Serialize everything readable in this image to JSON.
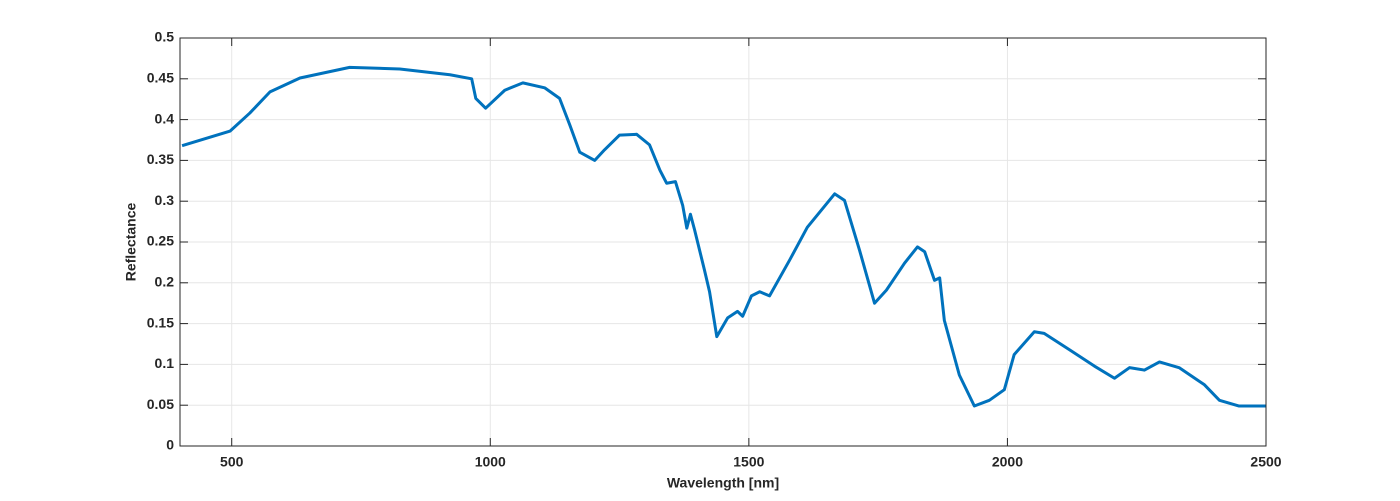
{
  "chart_data": {
    "type": "line",
    "xlabel": "Wavelength [nm]",
    "ylabel": "Reflectance",
    "x": [
      404,
      497,
      535,
      574,
      632,
      728,
      825,
      922,
      964,
      972,
      991,
      1028,
      1063,
      1105,
      1134,
      1154,
      1173,
      1202,
      1221,
      1250,
      1283,
      1308,
      1328,
      1341,
      1358,
      1372,
      1380,
      1387,
      1395,
      1414,
      1424,
      1438,
      1459,
      1478,
      1488,
      1505,
      1521,
      1540,
      1579,
      1613,
      1666,
      1685,
      1714,
      1743,
      1766,
      1801,
      1826,
      1840,
      1859,
      1869,
      1878,
      1907,
      1936,
      1965,
      1994,
      2013,
      2052,
      2071,
      2120,
      2168,
      2207,
      2236,
      2265,
      2294,
      2332,
      2381,
      2410,
      2448,
      2499
    ],
    "series": [
      {
        "name": "Reflectance",
        "color": "#0072bd",
        "values": [
          0.368,
          0.386,
          0.408,
          0.434,
          0.451,
          0.464,
          0.462,
          0.455,
          0.45,
          0.426,
          0.414,
          0.436,
          0.445,
          0.439,
          0.426,
          0.393,
          0.36,
          0.35,
          0.363,
          0.381,
          0.382,
          0.369,
          0.338,
          0.322,
          0.324,
          0.295,
          0.267,
          0.284,
          0.265,
          0.216,
          0.189,
          0.134,
          0.157,
          0.165,
          0.159,
          0.184,
          0.189,
          0.184,
          0.228,
          0.268,
          0.309,
          0.301,
          0.24,
          0.175,
          0.191,
          0.224,
          0.244,
          0.238,
          0.203,
          0.206,
          0.154,
          0.087,
          0.049,
          0.056,
          0.069,
          0.112,
          0.14,
          0.138,
          0.118,
          0.098,
          0.083,
          0.096,
          0.093,
          0.103,
          0.096,
          0.075,
          0.056,
          0.049,
          0.049
        ]
      }
    ],
    "xlim": [
      400,
      2500
    ],
    "xticks": [
      500,
      1000,
      1500,
      2000,
      2500
    ],
    "ylim": [
      0,
      0.5
    ],
    "yticks": [
      0,
      0.05,
      0.1,
      0.15,
      0.2,
      0.25,
      0.3,
      0.35,
      0.4,
      0.45,
      0.5
    ],
    "grid": true
  }
}
